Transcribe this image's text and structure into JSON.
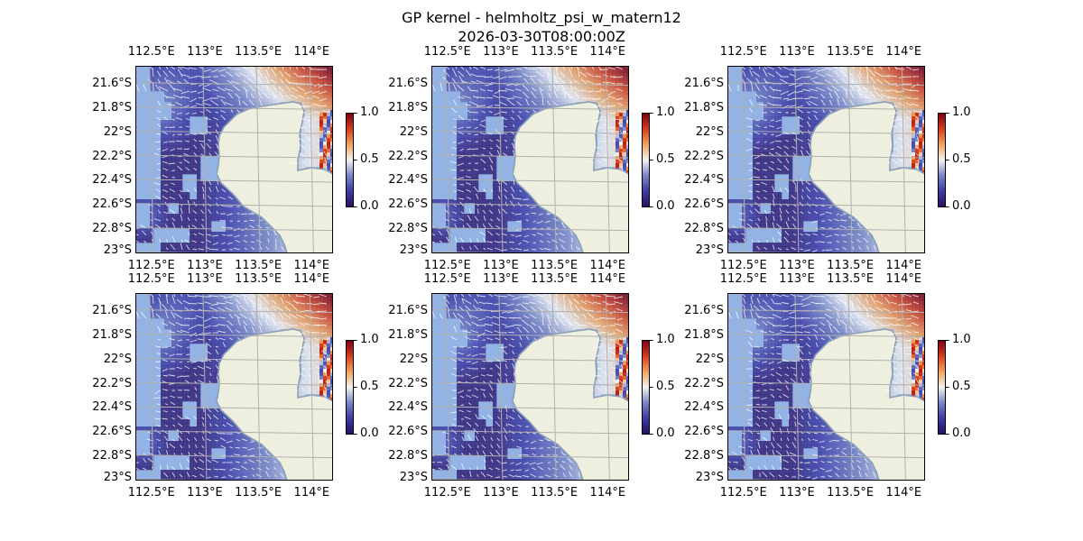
{
  "title": {
    "line1": "GP kernel - helmholtz_psi_w_matern12",
    "line2": "2026-03-30T08:00:00Z"
  },
  "colors": {
    "ocean_mask": "#92b3e3",
    "land": "#efefdf",
    "coast": "#8a9fb5",
    "gridline": "#b0b0b0",
    "vector": "#ffffff",
    "cmap": [
      "#2b0f5e",
      "#3b3aa3",
      "#7a86c4",
      "#f2f2f2",
      "#f2a35a",
      "#d73c1c",
      "#7a0010"
    ]
  },
  "map": {
    "lon_ticks": [
      "112.5°E",
      "113°E",
      "113.5°E",
      "114°E"
    ],
    "lat_ticks": [
      "21.6°S",
      "21.8°S",
      "22°S",
      "22.2°S",
      "22.4°S",
      "22.6°S",
      "22.8°S",
      "23°S"
    ],
    "lon_values": [
      112.5,
      113.0,
      113.5,
      114.0
    ],
    "lat_values": [
      -21.6,
      -21.8,
      -22.0,
      -22.2,
      -22.4,
      -22.6,
      -22.8,
      -23.0
    ],
    "extent": {
      "lon": [
        112.35,
        114.2
      ],
      "lat": [
        -23.0,
        -21.45
      ]
    }
  },
  "colorbar": {
    "ticks": [
      "1.0",
      "0.5",
      "0.0"
    ],
    "range": [
      0,
      1
    ]
  },
  "panels": [
    {
      "name": "panel-1",
      "row": 0,
      "col": 0
    },
    {
      "name": "panel-2",
      "row": 0,
      "col": 1
    },
    {
      "name": "panel-3",
      "row": 0,
      "col": 2
    },
    {
      "name": "panel-4",
      "row": 1,
      "col": 0
    },
    {
      "name": "panel-5",
      "row": 1,
      "col": 1
    },
    {
      "name": "panel-6",
      "row": 1,
      "col": 2
    }
  ]
}
